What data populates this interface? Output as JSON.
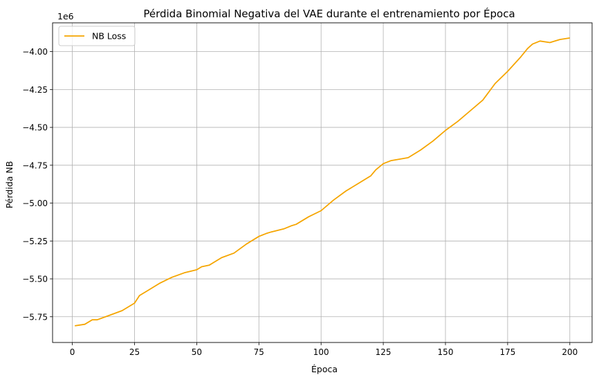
{
  "chart_data": {
    "type": "line",
    "title": "Pérdida Binomial Negativa del VAE durante el entrenamiento por Época",
    "xlabel": "Época",
    "ylabel": "Pérdida NB",
    "offset_text": "1e6",
    "xlim": [
      -7.95,
      208.95
    ],
    "ylim": [
      -5.92,
      -3.81
    ],
    "x_ticks": [
      0,
      25,
      50,
      75,
      100,
      125,
      150,
      175,
      200
    ],
    "y_ticks": [
      -5.75,
      -5.5,
      -5.25,
      -5.0,
      -4.75,
      -4.5,
      -4.25,
      -4.0
    ],
    "y_tick_labels": [
      "−5.75",
      "−5.50",
      "−5.25",
      "−5.00",
      "−4.75",
      "−4.50",
      "−4.25",
      "−4.00"
    ],
    "grid": true,
    "legend_position": "top-left",
    "series": [
      {
        "name": "NB Loss",
        "color": "#f5a500",
        "x": [
          1,
          5,
          8,
          10,
          15,
          20,
          25,
          27,
          30,
          35,
          40,
          45,
          50,
          52,
          55,
          60,
          65,
          70,
          75,
          78,
          80,
          85,
          88,
          90,
          95,
          100,
          105,
          110,
          115,
          120,
          122,
          125,
          128,
          135,
          140,
          145,
          150,
          155,
          160,
          165,
          170,
          175,
          180,
          183,
          185,
          188,
          192,
          196,
          200
        ],
        "y": [
          -5.81,
          -5.8,
          -5.77,
          -5.77,
          -5.74,
          -5.71,
          -5.66,
          -5.61,
          -5.58,
          -5.53,
          -5.49,
          -5.46,
          -5.44,
          -5.42,
          -5.41,
          -5.36,
          -5.33,
          -5.27,
          -5.22,
          -5.2,
          -5.19,
          -5.17,
          -5.15,
          -5.14,
          -5.09,
          -5.05,
          -4.98,
          -4.92,
          -4.87,
          -4.82,
          -4.78,
          -4.74,
          -4.72,
          -4.7,
          -4.65,
          -4.59,
          -4.52,
          -4.46,
          -4.39,
          -4.32,
          -4.21,
          -4.13,
          -4.04,
          -3.98,
          -3.95,
          -3.93,
          -3.94,
          -3.92,
          -3.91
        ]
      }
    ]
  }
}
